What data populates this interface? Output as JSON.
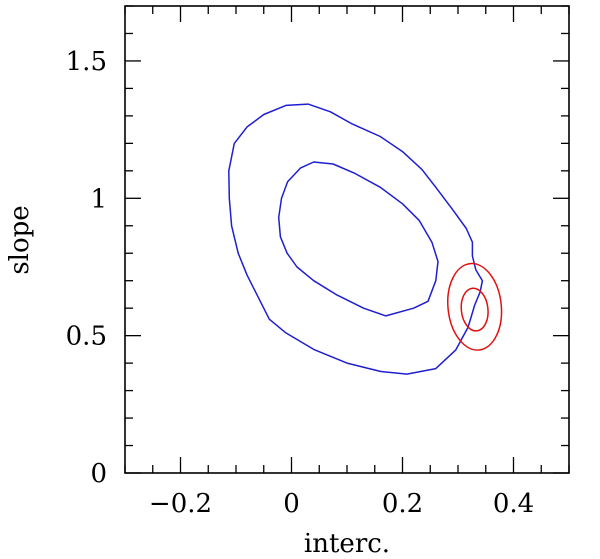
{
  "chart_data": {
    "type": "contour",
    "xlabel": "interc.",
    "ylabel": "slope",
    "xlim": [
      -0.3,
      0.5
    ],
    "ylim": [
      0,
      1.7
    ],
    "x_ticks": [
      -0.2,
      0,
      0.2,
      0.4
    ],
    "x_tick_labels": [
      "−0.2",
      "0",
      "0.2",
      "0.4"
    ],
    "y_ticks": [
      0,
      0.5,
      1,
      1.5
    ],
    "y_tick_labels": [
      "0",
      "0.5",
      "1",
      "1.5"
    ],
    "x_minor_step": 0.05,
    "y_minor_step": 0.1,
    "grid": false,
    "series": [
      {
        "color": "#1f1fd0",
        "contours": [
          [
            [
              -0.103,
              1.2
            ],
            [
              -0.08,
              1.26
            ],
            [
              -0.05,
              1.305
            ],
            [
              -0.01,
              1.338
            ],
            [
              0.03,
              1.343
            ],
            [
              0.07,
              1.315
            ],
            [
              0.11,
              1.27
            ],
            [
              0.16,
              1.225
            ],
            [
              0.2,
              1.17
            ],
            [
              0.235,
              1.105
            ],
            [
              0.26,
              1.04
            ],
            [
              0.29,
              0.96
            ],
            [
              0.315,
              0.89
            ],
            [
              0.326,
              0.84
            ],
            [
              0.326,
              0.79
            ],
            [
              0.332,
              0.74
            ],
            [
              0.344,
              0.7
            ],
            [
              0.34,
              0.66
            ],
            [
              0.33,
              0.61
            ],
            [
              0.318,
              0.53
            ],
            [
              0.296,
              0.448
            ],
            [
              0.26,
              0.38
            ],
            [
              0.208,
              0.36
            ],
            [
              0.16,
              0.37
            ],
            [
              0.1,
              0.4
            ],
            [
              0.04,
              0.45
            ],
            [
              -0.01,
              0.51
            ],
            [
              -0.04,
              0.56
            ],
            [
              -0.06,
              0.64
            ],
            [
              -0.08,
              0.72
            ],
            [
              -0.096,
              0.8
            ],
            [
              -0.108,
              0.9
            ],
            [
              -0.112,
              1.0
            ],
            [
              -0.113,
              1.1
            ],
            [
              -0.103,
              1.2
            ]
          ],
          [
            [
              -0.007,
              1.06
            ],
            [
              0.016,
              1.11
            ],
            [
              0.04,
              1.132
            ],
            [
              0.075,
              1.125
            ],
            [
              0.115,
              1.09
            ],
            [
              0.16,
              1.04
            ],
            [
              0.2,
              0.98
            ],
            [
              0.23,
              0.92
            ],
            [
              0.253,
              0.84
            ],
            [
              0.264,
              0.77
            ],
            [
              0.26,
              0.7
            ],
            [
              0.246,
              0.625
            ],
            [
              0.22,
              0.6
            ],
            [
              0.17,
              0.572
            ],
            [
              0.13,
              0.6
            ],
            [
              0.08,
              0.65
            ],
            [
              0.04,
              0.7
            ],
            [
              0.01,
              0.75
            ],
            [
              -0.008,
              0.8
            ],
            [
              -0.02,
              0.86
            ],
            [
              -0.023,
              0.93
            ],
            [
              -0.018,
              1.0
            ],
            [
              -0.007,
              1.06
            ]
          ]
        ]
      },
      {
        "color": "#e01010",
        "contours": [
          {
            "cx": 0.33,
            "cy": 0.605,
            "rx": 0.048,
            "ry": 0.158,
            "rotation_deg": -6
          },
          {
            "cx": 0.33,
            "cy": 0.595,
            "rx": 0.024,
            "ry": 0.078,
            "rotation_deg": -6
          }
        ]
      }
    ]
  }
}
